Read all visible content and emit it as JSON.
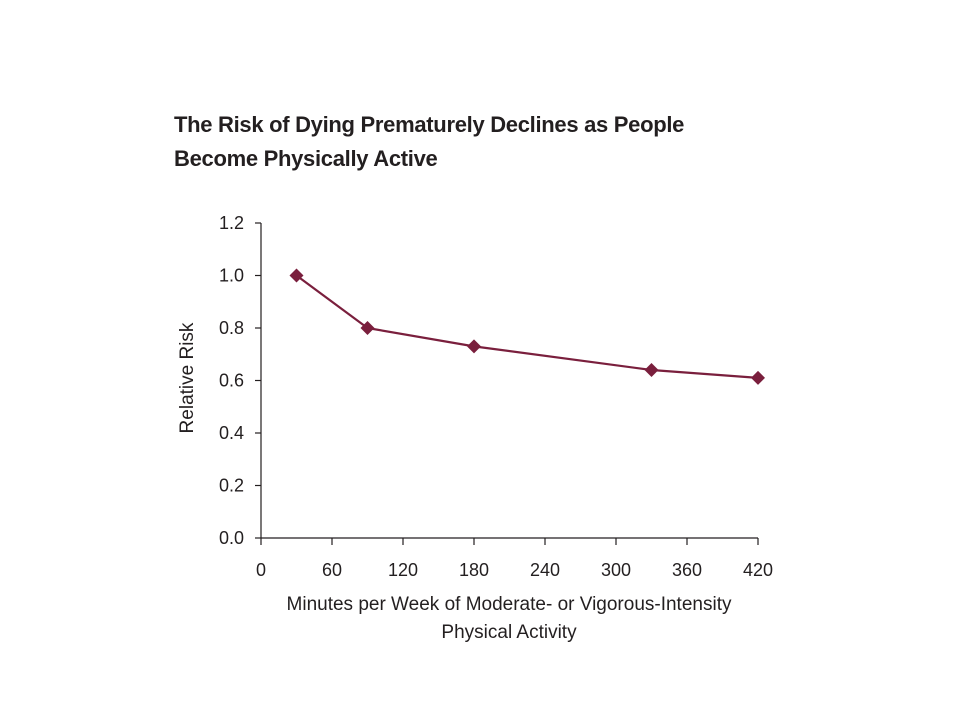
{
  "chart_data": {
    "type": "line",
    "title_lines": [
      "The Risk of Dying Prematurely Declines as People",
      "Become Physically Active"
    ],
    "xlabel_lines": [
      "Minutes per Week of Moderate- or Vigorous-Intensity",
      "Physical Activity"
    ],
    "ylabel": "Relative Risk",
    "xlim": [
      0,
      420
    ],
    "ylim": [
      0,
      1.2
    ],
    "x_ticks": [
      0,
      60,
      120,
      180,
      240,
      300,
      360,
      420
    ],
    "y_ticks": [
      0.0,
      0.2,
      0.4,
      0.6,
      0.8,
      1.0,
      1.2
    ],
    "y_tick_labels": [
      "0.0",
      "0.2",
      "0.4",
      "0.6",
      "0.8",
      "1.0",
      "1.2"
    ],
    "grid": false,
    "series": [
      {
        "color": "#7a1f3d",
        "marker": "diamond",
        "x": [
          30,
          90,
          180,
          330,
          420
        ],
        "y": [
          1.0,
          0.8,
          0.73,
          0.64,
          0.61
        ]
      }
    ]
  }
}
